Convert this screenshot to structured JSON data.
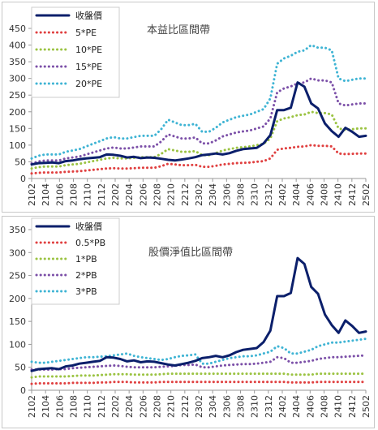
{
  "chart_data": [
    {
      "type": "line",
      "title": "本益比區間帶",
      "ylim": [
        0,
        450
      ],
      "yticks": [
        0,
        50,
        100,
        150,
        200,
        250,
        300,
        350,
        400,
        450
      ],
      "xticks": [
        "2102",
        "2104",
        "2106",
        "2108",
        "2110",
        "2112",
        "2202",
        "2204",
        "2206",
        "2208",
        "2210",
        "2212",
        "2302",
        "2304",
        "2306",
        "2308",
        "2310",
        "2312",
        "2402",
        "2404",
        "2406",
        "2408",
        "2410",
        "2412",
        "2502"
      ],
      "legend_position": "top-left",
      "grid": false,
      "series": [
        {
          "name": "收盤價",
          "color": "#0b1f6b",
          "style": "solid",
          "width": 3,
          "values": [
            42,
            46,
            47,
            48,
            46,
            52,
            54,
            58,
            60,
            62,
            64,
            72,
            71,
            68,
            63,
            65,
            61,
            63,
            62,
            59,
            56,
            54,
            57,
            60,
            64,
            70,
            72,
            75,
            72,
            76,
            83,
            88,
            90,
            92,
            105,
            130,
            205,
            205,
            212,
            288,
            275,
            225,
            210,
            165,
            142,
            125,
            152,
            140,
            125,
            128
          ]
        },
        {
          "name": "5*PE",
          "color": "#e04040",
          "style": "dotted",
          "width": 3,
          "values": [
            15,
            17,
            18,
            18,
            18,
            20,
            21,
            22,
            24,
            26,
            28,
            30,
            31,
            30,
            30,
            31,
            32,
            32,
            32,
            37,
            44,
            42,
            40,
            40,
            41,
            35,
            35,
            38,
            42,
            44,
            46,
            47,
            48,
            50,
            52,
            60,
            86,
            90,
            92,
            95,
            96,
            100,
            98,
            98,
            96,
            75,
            73,
            74,
            75,
            75
          ]
        },
        {
          "name": "10*PE",
          "color": "#9bc342",
          "style": "dotted",
          "width": 3,
          "values": [
            30,
            34,
            36,
            36,
            36,
            40,
            42,
            44,
            48,
            52,
            56,
            60,
            62,
            60,
            60,
            62,
            64,
            64,
            64,
            74,
            88,
            84,
            80,
            80,
            82,
            70,
            70,
            76,
            84,
            88,
            92,
            94,
            96,
            100,
            104,
            120,
            172,
            180,
            184,
            190,
            192,
            200,
            196,
            196,
            192,
            150,
            146,
            148,
            150,
            150
          ]
        },
        {
          "name": "15*PE",
          "color": "#7c50a8",
          "style": "dotted",
          "width": 3,
          "values": [
            45,
            51,
            54,
            54,
            54,
            60,
            63,
            66,
            72,
            78,
            84,
            90,
            93,
            90,
            90,
            93,
            96,
            96,
            96,
            111,
            132,
            126,
            120,
            120,
            123,
            105,
            105,
            114,
            126,
            132,
            138,
            141,
            144,
            150,
            156,
            180,
            258,
            270,
            276,
            285,
            288,
            300,
            294,
            294,
            288,
            225,
            219,
            222,
            225,
            225
          ]
        },
        {
          "name": "20*PE",
          "color": "#3fb4d4",
          "style": "dotted",
          "width": 3,
          "values": [
            60,
            68,
            72,
            72,
            72,
            80,
            84,
            88,
            96,
            104,
            112,
            120,
            124,
            120,
            120,
            124,
            128,
            128,
            128,
            148,
            176,
            168,
            160,
            160,
            164,
            140,
            140,
            152,
            168,
            176,
            184,
            188,
            192,
            200,
            208,
            240,
            344,
            360,
            368,
            380,
            384,
            400,
            392,
            392,
            384,
            300,
            292,
            296,
            300,
            300
          ]
        }
      ]
    },
    {
      "type": "line",
      "title": "股價淨值比區間帶",
      "ylim": [
        0,
        350
      ],
      "yticks": [
        0,
        50,
        100,
        150,
        200,
        250,
        300,
        350
      ],
      "xticks": [
        "2102",
        "2104",
        "2106",
        "2108",
        "2110",
        "2112",
        "2202",
        "2204",
        "2206",
        "2208",
        "2210",
        "2212",
        "2302",
        "2304",
        "2306",
        "2308",
        "2310",
        "2312",
        "2402",
        "2404",
        "2406",
        "2408",
        "2410",
        "2412",
        "2502"
      ],
      "legend_position": "top-left",
      "grid": false,
      "series": [
        {
          "name": "收盤價",
          "color": "#0b1f6b",
          "style": "solid",
          "width": 3,
          "values": [
            42,
            46,
            47,
            48,
            46,
            52,
            54,
            58,
            60,
            62,
            64,
            72,
            71,
            68,
            63,
            65,
            61,
            63,
            62,
            59,
            56,
            54,
            57,
            60,
            64,
            70,
            72,
            75,
            72,
            76,
            83,
            88,
            90,
            92,
            105,
            130,
            205,
            205,
            212,
            288,
            275,
            225,
            210,
            165,
            142,
            125,
            152,
            140,
            125,
            128
          ]
        },
        {
          "name": "0.5*PB",
          "color": "#e04040",
          "style": "dotted",
          "width": 3,
          "values": [
            14,
            15,
            15,
            15,
            15,
            15,
            16,
            16,
            16,
            16,
            17,
            17,
            18,
            18,
            18,
            17,
            17,
            17,
            17,
            18,
            18,
            18,
            18,
            18,
            18,
            18,
            18,
            18,
            18,
            18,
            18,
            18,
            18,
            18,
            18,
            18,
            18,
            18,
            17,
            17,
            17,
            17,
            18,
            18,
            18,
            18,
            18,
            18,
            18,
            18
          ]
        },
        {
          "name": "1*PB",
          "color": "#9bc342",
          "style": "dotted",
          "width": 3,
          "values": [
            28,
            30,
            30,
            30,
            30,
            30,
            31,
            32,
            32,
            32,
            33,
            34,
            35,
            35,
            35,
            34,
            34,
            34,
            34,
            35,
            36,
            36,
            36,
            36,
            36,
            36,
            36,
            36,
            36,
            36,
            36,
            36,
            36,
            36,
            36,
            36,
            36,
            36,
            34,
            34,
            34,
            34,
            36,
            36,
            36,
            36,
            36,
            36,
            36,
            36
          ]
        },
        {
          "name": "2*PB",
          "color": "#7c50a8",
          "style": "dotted",
          "width": 3,
          "values": [
            45,
            45,
            45,
            45,
            46,
            46,
            48,
            49,
            50,
            51,
            52,
            53,
            54,
            53,
            51,
            50,
            50,
            50,
            50,
            51,
            52,
            53,
            55,
            55,
            56,
            50,
            50,
            52,
            54,
            55,
            56,
            57,
            57,
            58,
            60,
            62,
            72,
            70,
            60,
            60,
            62,
            64,
            68,
            70,
            72,
            72,
            73,
            74,
            75,
            76
          ]
        },
        {
          "name": "3*PB",
          "color": "#3fb4d4",
          "style": "dotted",
          "width": 3,
          "values": [
            62,
            60,
            60,
            62,
            64,
            66,
            68,
            70,
            72,
            72,
            73,
            74,
            76,
            78,
            80,
            75,
            72,
            70,
            68,
            66,
            68,
            72,
            75,
            76,
            78,
            58,
            58,
            62,
            66,
            70,
            72,
            74,
            74,
            76,
            80,
            84,
            96,
            92,
            80,
            80,
            84,
            88,
            96,
            100,
            104,
            104,
            106,
            108,
            110,
            112
          ]
        }
      ]
    }
  ]
}
